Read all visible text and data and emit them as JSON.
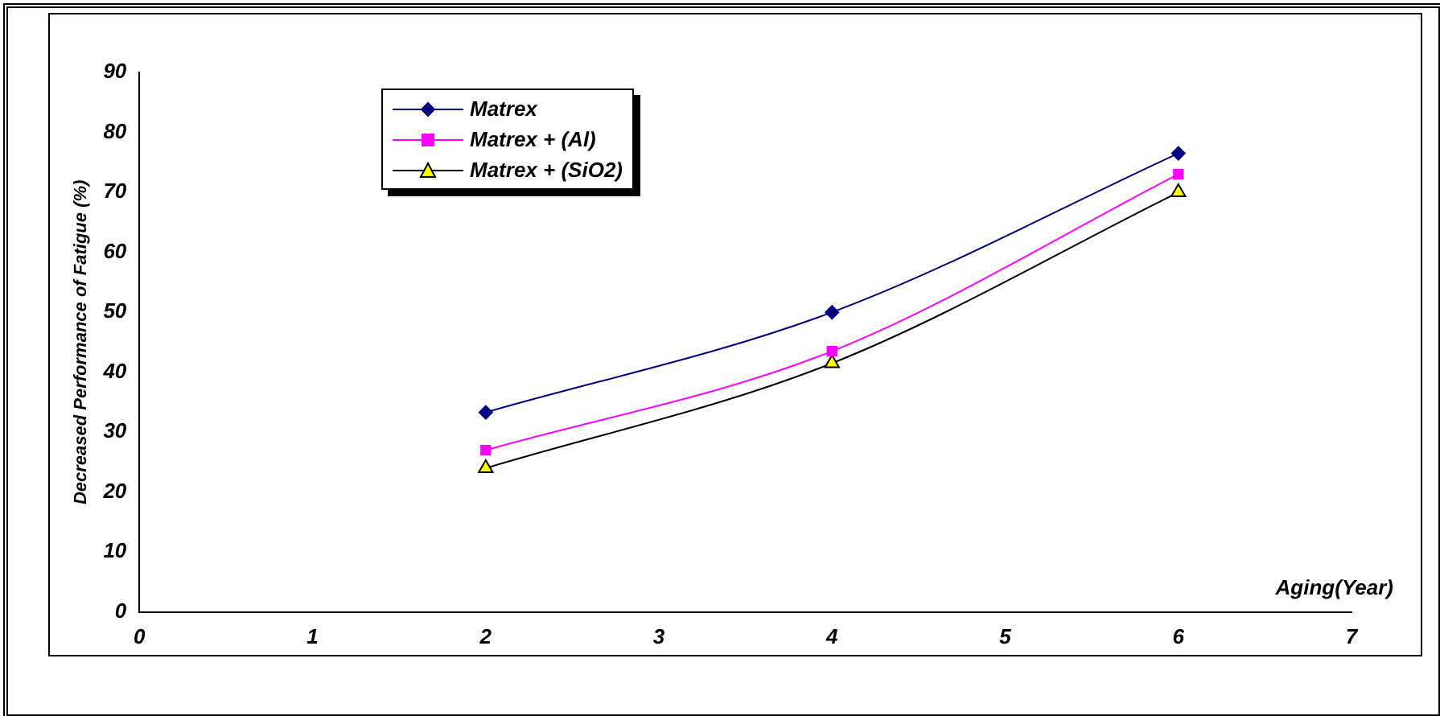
{
  "chart_data": {
    "type": "line",
    "xlabel": "Aging(Year)",
    "ylabel": "Decreased Performance of Fatigue (%)",
    "x": [
      2,
      4,
      6
    ],
    "series": [
      {
        "name": "Matrex",
        "color": "#000080",
        "values": [
          33.3,
          50,
          76.5
        ],
        "marker": "diamond"
      },
      {
        "name": "Matrex + (Al)",
        "color": "#ff00ff",
        "values": [
          27,
          43.5,
          73
        ],
        "marker": "square"
      },
      {
        "name": "Matrex + (SiO2)",
        "color": "#000000",
        "colors": [
          "#ffff00",
          "#ffff00",
          "#ffff00"
        ],
        "values": [
          24,
          41.5,
          70
        ],
        "marker": "triangle"
      }
    ],
    "xlim": [
      0,
      7
    ],
    "xticks": [
      0,
      1,
      2,
      3,
      4,
      5,
      6,
      7
    ],
    "ylim": [
      0,
      90
    ],
    "yticks": [
      0,
      10,
      20,
      30,
      40,
      50,
      60,
      70,
      80,
      90
    ],
    "grid": false,
    "legend": "top left",
    "line_style": "solid"
  }
}
